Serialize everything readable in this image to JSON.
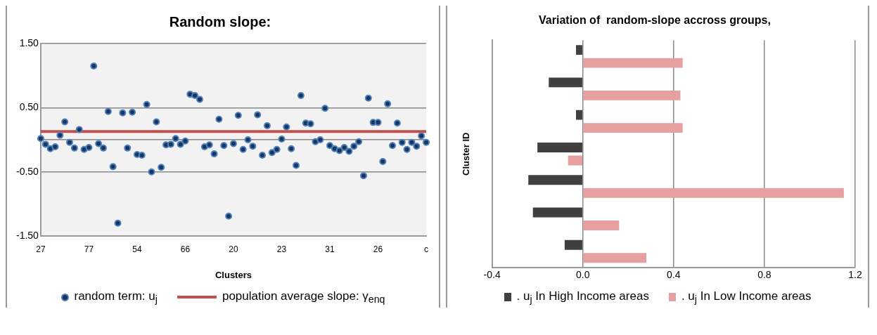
{
  "chart_data": [
    {
      "type": "scatter",
      "title": "Random slope:",
      "xlabel": "Clusters",
      "categories": [
        "27",
        null,
        null,
        null,
        null,
        null,
        null,
        null,
        null,
        null,
        "77",
        null,
        null,
        null,
        null,
        null,
        null,
        null,
        null,
        null,
        "54",
        null,
        null,
        null,
        null,
        null,
        null,
        null,
        null,
        null,
        "66",
        null,
        null,
        null,
        null,
        null,
        null,
        null,
        null,
        null,
        "20",
        null,
        null,
        null,
        null,
        null,
        null,
        null,
        null,
        null,
        "23",
        null,
        null,
        null,
        null,
        null,
        null,
        null,
        null,
        null,
        "31",
        null,
        null,
        null,
        null,
        null,
        null,
        null,
        null,
        null,
        "26",
        null,
        null,
        null,
        null,
        null,
        null,
        null,
        null,
        null,
        "c"
      ],
      "series": [
        {
          "name": "random term: u$_{j}$",
          "type": "scatter",
          "color": "#17375e",
          "values": [
            0.02,
            -0.07,
            -0.14,
            -0.11,
            0.07,
            0.28,
            -0.04,
            -0.13,
            0.16,
            -0.15,
            -0.12,
            1.15,
            -0.06,
            -0.13,
            0.44,
            -0.42,
            -1.3,
            0.42,
            -0.13,
            0.43,
            -0.23,
            -0.24,
            0.55,
            -0.5,
            0.28,
            -0.43,
            -0.08,
            -0.07,
            0.02,
            -0.07,
            -0.02,
            0.71,
            0.69,
            0.63,
            -0.11,
            -0.08,
            -0.22,
            0.32,
            -0.09,
            -1.19,
            -0.06,
            0.38,
            -0.15,
            0.0,
            -0.1,
            0.39,
            -0.24,
            0.22,
            -0.2,
            -0.15,
            0.01,
            0.2,
            -0.14,
            -0.4,
            0.69,
            0.26,
            0.25,
            -0.03,
            0.0,
            0.49,
            -0.09,
            -0.14,
            -0.17,
            -0.12,
            -0.18,
            -0.1,
            -0.03,
            -0.56,
            0.65,
            0.27,
            0.27,
            -0.34,
            0.56,
            -0.09,
            0.26,
            -0.04,
            -0.15,
            -0.04,
            -0.1,
            0.06,
            -0.04
          ]
        },
        {
          "name": "population average slope: γ$_{enq}$",
          "type": "line",
          "marker": "none",
          "color": "#c0504d",
          "values": [
            0.13,
            0.13,
            0.13,
            0.13,
            0.13,
            0.13,
            0.13,
            0.13,
            0.13,
            0.13,
            0.13,
            0.13,
            0.13,
            0.13,
            0.13,
            0.13,
            0.13,
            0.13,
            0.13,
            0.13,
            0.13,
            0.13,
            0.13,
            0.13,
            0.13,
            0.13,
            0.13,
            0.13,
            0.13,
            0.13,
            0.13,
            0.13,
            0.13,
            0.13,
            0.13,
            0.13,
            0.13,
            0.13,
            0.13,
            0.13,
            0.13,
            0.13,
            0.13,
            0.13,
            0.13,
            0.13,
            0.13,
            0.13,
            0.13,
            0.13,
            0.13,
            0.13,
            0.13,
            0.13,
            0.13,
            0.13,
            0.13,
            0.13,
            0.13,
            0.13,
            0.13,
            0.13,
            0.13,
            0.13,
            0.13,
            0.13,
            0.13,
            0.13,
            0.13,
            0.13,
            0.13,
            0.13,
            0.13,
            0.13,
            0.13,
            0.13,
            0.13,
            0.13,
            0.13,
            0.13,
            0.13
          ]
        }
      ],
      "ylim": [
        -1.5,
        1.5
      ],
      "yticks": [
        {
          "value": 1.5,
          "label": "1.50"
        },
        {
          "value": 0.5,
          "label": "0.50"
        },
        {
          "value": 0,
          "label": null
        },
        {
          "value": -0.5,
          "label": "-0.50"
        },
        {
          "value": -1.5,
          "label": "-1.50"
        }
      ],
      "grid": "y",
      "marker": "circle",
      "legend": "bottom"
    },
    {
      "type": "bar",
      "orientation": "horizontal",
      "title": "Variation of  random-slope accross groups,",
      "ylabel": "Cluster ID",
      "categories": [
        null,
        null,
        null,
        null,
        null,
        null,
        null
      ],
      "series": [
        {
          "name": ". u$_{j}$  In High Income areas",
          "color": "#404040",
          "values": [
            -0.03,
            -0.15,
            -0.03,
            -0.2,
            -0.24,
            -0.22,
            -0.08
          ]
        },
        {
          "name": ". u$_{j}$  In Low Income areas",
          "color": "#e6a0a0",
          "values": [
            0.44,
            0.43,
            0.44,
            -0.065,
            1.15,
            0.16,
            0.28
          ]
        }
      ],
      "xlim": [
        -0.4,
        1.2
      ],
      "xticks": [
        -0.4,
        {
          "value": 0,
          "label": "0.0"
        },
        0.4,
        0.8,
        1.2
      ],
      "grid": "x",
      "legend": "bottom"
    }
  ]
}
